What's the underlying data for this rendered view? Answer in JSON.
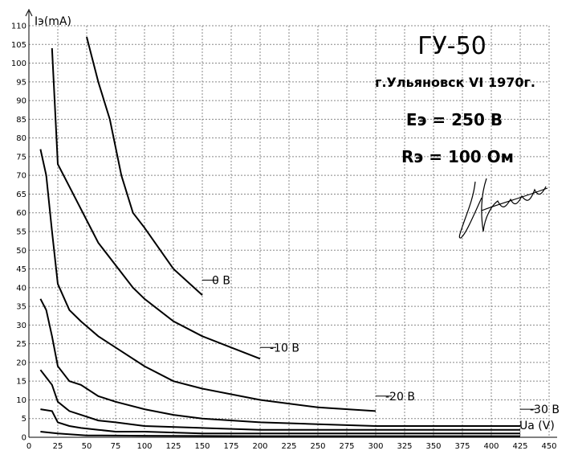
{
  "chart_data": {
    "type": "line",
    "title": "ГУ-50",
    "subtitle": "г.Ульяновск VI 1970г.",
    "annotations": [
      "Eэ = 250 В",
      "Rэ = 100 Ом"
    ],
    "xlabel": "Ua (V)",
    "ylabel": "Iэ(mA)",
    "xlim": [
      0,
      450
    ],
    "ylim": [
      0,
      110
    ],
    "x_ticks": [
      0,
      25,
      50,
      75,
      100,
      125,
      150,
      175,
      200,
      225,
      250,
      275,
      300,
      325,
      350,
      375,
      400,
      425,
      450
    ],
    "y_ticks": [
      0,
      5,
      10,
      15,
      20,
      25,
      30,
      35,
      40,
      45,
      50,
      55,
      60,
      65,
      70,
      75,
      80,
      85,
      90,
      95,
      100,
      105,
      110
    ],
    "grid": true,
    "series": [
      {
        "name": "0 В",
        "label_at": [
          150,
          42
        ],
        "points": [
          [
            50,
            107
          ],
          [
            60,
            95
          ],
          [
            70,
            85
          ],
          [
            80,
            70
          ],
          [
            90,
            60
          ],
          [
            100,
            56
          ],
          [
            125,
            45
          ],
          [
            150,
            38
          ]
        ]
      },
      {
        "name": "-10 В",
        "label_at": [
          200,
          24
        ],
        "points": [
          [
            20,
            104
          ],
          [
            25,
            73
          ],
          [
            35,
            67
          ],
          [
            50,
            58
          ],
          [
            60,
            52
          ],
          [
            75,
            46
          ],
          [
            90,
            40
          ],
          [
            100,
            37
          ],
          [
            125,
            31
          ],
          [
            150,
            27
          ],
          [
            175,
            24
          ],
          [
            200,
            21
          ]
        ]
      },
      {
        "name": "-20 В",
        "label_at": [
          300,
          11
        ],
        "points": [
          [
            10,
            77
          ],
          [
            15,
            70
          ],
          [
            20,
            55
          ],
          [
            25,
            41
          ],
          [
            35,
            34
          ],
          [
            45,
            31
          ],
          [
            60,
            27
          ],
          [
            75,
            24
          ],
          [
            100,
            19
          ],
          [
            125,
            15
          ],
          [
            150,
            13
          ],
          [
            200,
            10
          ],
          [
            250,
            8
          ],
          [
            300,
            7
          ]
        ]
      },
      {
        "name": "-30 В",
        "label_at": [
          425,
          7.5
        ],
        "points": [
          [
            10,
            37
          ],
          [
            15,
            34
          ],
          [
            20,
            27
          ],
          [
            25,
            19
          ],
          [
            35,
            15
          ],
          [
            45,
            14
          ],
          [
            60,
            11
          ],
          [
            75,
            9.5
          ],
          [
            100,
            7.5
          ],
          [
            125,
            6
          ],
          [
            150,
            5
          ],
          [
            200,
            4
          ],
          [
            250,
            3.5
          ],
          [
            300,
            3
          ],
          [
            350,
            3
          ],
          [
            425,
            3
          ]
        ]
      },
      {
        "points": [
          [
            10,
            18
          ],
          [
            15,
            16
          ],
          [
            20,
            14
          ],
          [
            25,
            9.5
          ],
          [
            35,
            7
          ],
          [
            45,
            6
          ],
          [
            60,
            4.5
          ],
          [
            75,
            4
          ],
          [
            100,
            3
          ],
          [
            150,
            2.5
          ],
          [
            200,
            2
          ],
          [
            300,
            2
          ],
          [
            425,
            2
          ]
        ]
      },
      {
        "points": [
          [
            10,
            7.5
          ],
          [
            20,
            7
          ],
          [
            25,
            4
          ],
          [
            35,
            3
          ],
          [
            45,
            2.5
          ],
          [
            60,
            2
          ],
          [
            75,
            1.5
          ],
          [
            100,
            1.5
          ],
          [
            150,
            1
          ],
          [
            200,
            1
          ],
          [
            300,
            1
          ],
          [
            425,
            1
          ]
        ]
      },
      {
        "points": [
          [
            10,
            1.5
          ],
          [
            25,
            1
          ],
          [
            50,
            0.5
          ],
          [
            100,
            0.4
          ],
          [
            200,
            0.3
          ],
          [
            300,
            0.3
          ],
          [
            425,
            0.3
          ]
        ]
      }
    ]
  },
  "signature_text": "Nowy"
}
